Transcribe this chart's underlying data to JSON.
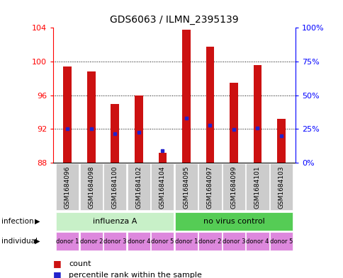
{
  "title": "GDS6063 / ILMN_2395139",
  "samples": [
    "GSM1684096",
    "GSM1684098",
    "GSM1684100",
    "GSM1684102",
    "GSM1684104",
    "GSM1684095",
    "GSM1684097",
    "GSM1684099",
    "GSM1684101",
    "GSM1684103"
  ],
  "counts": [
    99.4,
    98.8,
    95.0,
    96.0,
    89.2,
    103.8,
    101.8,
    97.5,
    99.6,
    93.2
  ],
  "percentiles": [
    92.0,
    92.0,
    91.4,
    91.6,
    89.4,
    93.3,
    92.4,
    91.9,
    92.1,
    91.2
  ],
  "ylim_left": [
    88,
    104
  ],
  "yticks_left": [
    88,
    92,
    96,
    100,
    104
  ],
  "yticks_right": [
    0,
    25,
    50,
    75,
    100
  ],
  "yticklabels_right": [
    "0%",
    "25%",
    "50%",
    "75%",
    "100%"
  ],
  "bar_bottom": 88,
  "bar_color": "#cc1111",
  "dot_color": "#2222cc",
  "plot_bg": "#ffffff",
  "infection_groups": [
    {
      "label": "influenza A",
      "start": 0,
      "end": 4,
      "color": "#c8f0c8"
    },
    {
      "label": "no virus control",
      "start": 5,
      "end": 9,
      "color": "#55cc55"
    }
  ],
  "individual_labels": [
    "donor 1",
    "donor 2",
    "donor 3",
    "donor 4",
    "donor 5",
    "donor 1",
    "donor 2",
    "donor 3",
    "donor 4",
    "donor 5"
  ],
  "individual_color": "#dd88dd",
  "bar_width": 0.35,
  "legend_count_color": "#cc1111",
  "legend_dot_color": "#2222cc",
  "sample_box_color": "#cccccc"
}
